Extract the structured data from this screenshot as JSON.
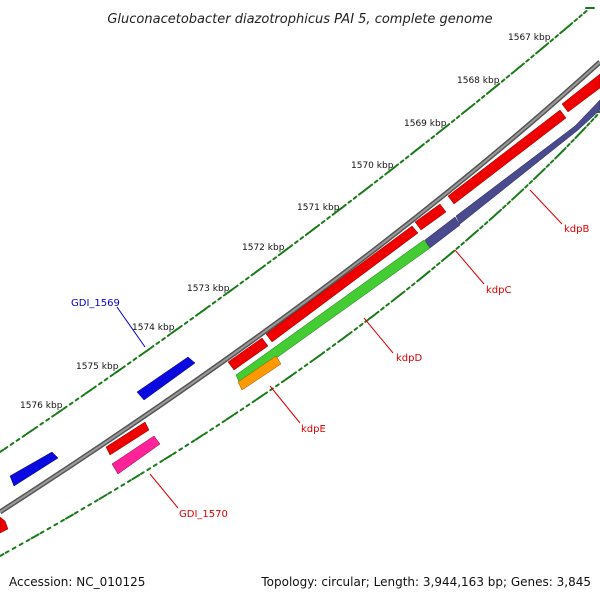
{
  "title": "Gluconacetobacter diazotrophicus PAI 5, complete genome",
  "footer": {
    "accession": "Accession: NC_010125",
    "summary": "Topology: circular; Length: 3,944,163 bp; Genes: 3,845"
  },
  "ticks": [
    "1567 kbp",
    "1568 kbp",
    "1569 kbp",
    "1570 kbp",
    "1571 kbp",
    "1572 kbp",
    "1573 kbp",
    "1574 kbp",
    "1575 kbp",
    "1576 kbp"
  ],
  "genes": [
    {
      "label": "GDI_1569",
      "color": "#0000cc"
    },
    {
      "label": "kdpB",
      "color": "#dd0000"
    },
    {
      "label": "kdpC",
      "color": "#dd0000"
    },
    {
      "label": "kdpD",
      "color": "#dd0000"
    },
    {
      "label": "kdpE",
      "color": "#dd0000"
    },
    {
      "label": "GDI_1570",
      "color": "#dd0000"
    }
  ],
  "colors": {
    "backbone": "#7a7a7a",
    "dots": "#1a7a1a",
    "red": "#ee0000",
    "blue": "#0a0ae0",
    "purple": "#4a4a8e",
    "green": "#44cc33",
    "orange": "#ff9900",
    "pink": "#ff2299"
  }
}
